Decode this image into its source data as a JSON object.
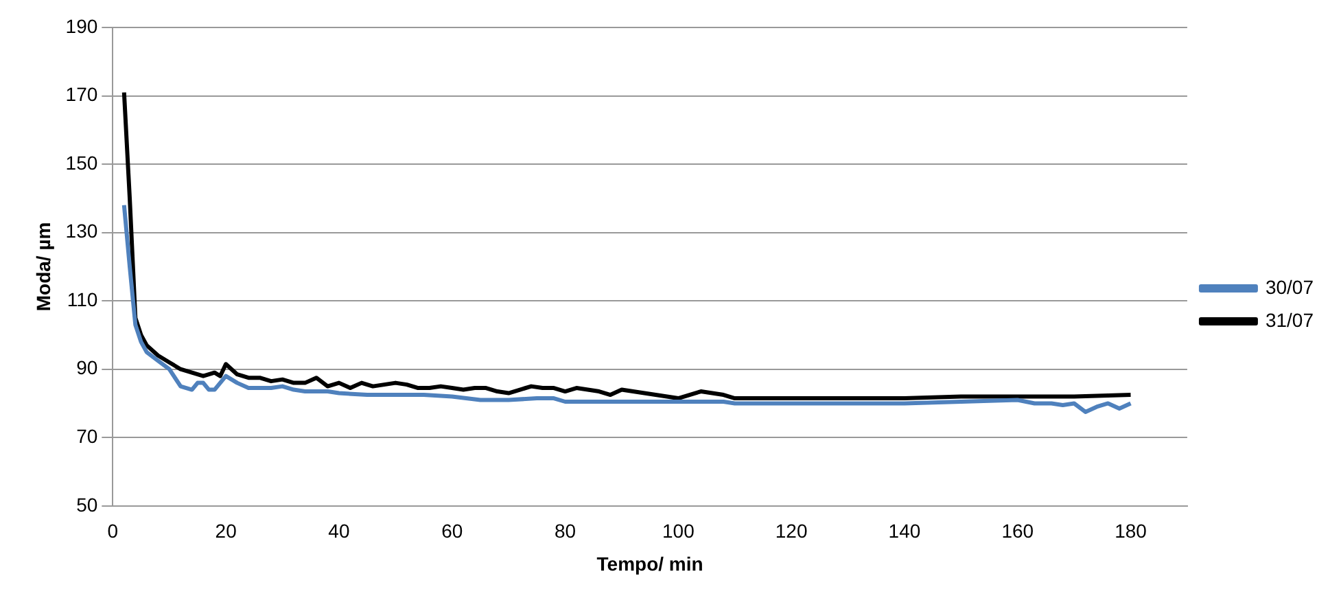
{
  "chart_data": {
    "type": "line",
    "xlabel": "Tempo/ min",
    "ylabel": "Moda/ µm",
    "xlim": [
      0,
      190
    ],
    "xticks": [
      0,
      20,
      40,
      60,
      80,
      100,
      120,
      140,
      160,
      180
    ],
    "ylim": [
      50,
      190
    ],
    "yticks": [
      50,
      70,
      90,
      110,
      130,
      150,
      170,
      190
    ],
    "grid": "y",
    "legend": "right",
    "marker": "none",
    "line_style": "solid",
    "series": [
      {
        "name": "30/07",
        "color": "#4f81bd",
        "x": [
          2,
          3,
          4,
          5,
          6,
          8,
          10,
          12,
          14,
          15,
          16,
          17,
          18,
          20,
          22,
          24,
          26,
          28,
          30,
          32,
          34,
          36,
          38,
          40,
          45,
          50,
          55,
          60,
          65,
          70,
          75,
          78,
          80,
          85,
          90,
          95,
          100,
          105,
          108,
          110,
          120,
          130,
          140,
          150,
          160,
          163,
          166,
          168,
          170,
          172,
          174,
          176,
          178,
          180
        ],
        "values": [
          138,
          120,
          103,
          98,
          95,
          92.5,
          90,
          85,
          84,
          86,
          86,
          84,
          84,
          88,
          86,
          84.5,
          84.5,
          84.5,
          85,
          84,
          83.5,
          83.5,
          83.5,
          83,
          82.5,
          82.5,
          82.5,
          82,
          81,
          81,
          81.5,
          81.5,
          80.5,
          80.5,
          80.5,
          80.5,
          80.5,
          80.5,
          80.5,
          80,
          80,
          80,
          80,
          80.5,
          81,
          80,
          80,
          79.5,
          80,
          77.5,
          79,
          80,
          78.5,
          80
        ]
      },
      {
        "name": "31/07",
        "color": "#000000",
        "x": [
          2,
          3,
          4,
          5,
          6,
          8,
          10,
          12,
          14,
          16,
          18,
          19,
          20,
          22,
          24,
          26,
          28,
          30,
          32,
          34,
          36,
          38,
          40,
          42,
          44,
          46,
          48,
          50,
          52,
          54,
          56,
          58,
          60,
          62,
          64,
          66,
          68,
          70,
          72,
          74,
          76,
          78,
          80,
          82,
          84,
          86,
          88,
          90,
          92,
          94,
          96,
          98,
          100,
          102,
          104,
          106,
          108,
          110,
          120,
          130,
          140,
          150,
          160,
          165,
          170,
          180
        ],
        "values": [
          171,
          140,
          105,
          100,
          97,
          94,
          92,
          90,
          89,
          88,
          89,
          88,
          91.5,
          88.5,
          87.5,
          87.5,
          86.5,
          87,
          86,
          86,
          87.5,
          85,
          86,
          84.5,
          86,
          85,
          85.5,
          86,
          85.5,
          84.5,
          84.5,
          85,
          84.5,
          84,
          84.5,
          84.5,
          83.5,
          83,
          84,
          85,
          84.5,
          84.5,
          83.5,
          84.5,
          84,
          83.5,
          82.5,
          84,
          83.5,
          83,
          82.5,
          82,
          81.5,
          82.5,
          83.5,
          83,
          82.5,
          81.5,
          81.5,
          81.5,
          81.5,
          82,
          82,
          82,
          82,
          82.5
        ]
      }
    ]
  }
}
